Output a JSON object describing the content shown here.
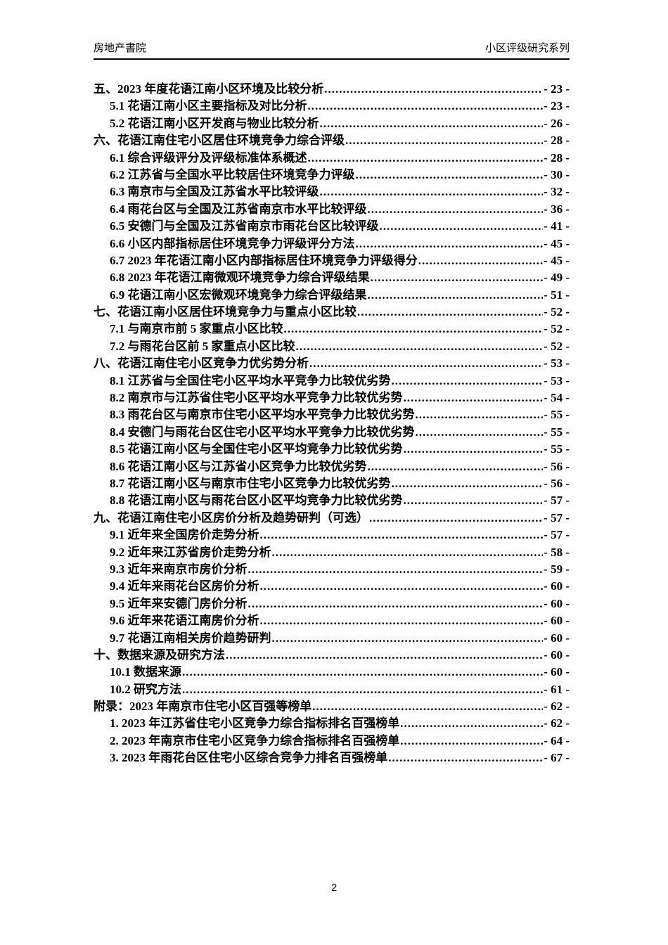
{
  "header": {
    "left": "房地产書院",
    "right": "小区评级研究系列"
  },
  "footer": {
    "page_number": "2"
  },
  "toc": {
    "entries": [
      {
        "level": 1,
        "label": "五、2023 年度花语江南小区环境及比较分析",
        "page": "- 23 -"
      },
      {
        "level": 2,
        "label": "5.1 花语江南小区主要指标及对比分析",
        "page": "- 23 -"
      },
      {
        "level": 2,
        "label": "5.2 花语江南小区开发商与物业比较分析",
        "page": "- 26 -"
      },
      {
        "level": 1,
        "label": "六、花语江南住宅小区居住环境竞争力综合评级",
        "page": "- 28 -"
      },
      {
        "level": 2,
        "label": "6.1 综合评级评分及评级标准体系概述",
        "page": "- 28 -"
      },
      {
        "level": 2,
        "label": "6.2 江苏省与全国水平比较居住环境竞争力评级",
        "page": "- 30 -"
      },
      {
        "level": 2,
        "label": "6.3 南京市与全国及江苏省水平比较评级",
        "page": "- 32 -"
      },
      {
        "level": 2,
        "label": "6.4 雨花台区与全国及江苏省南京市水平比较评级",
        "page": "- 36 -"
      },
      {
        "level": 2,
        "label": "6.5 安德门与全国及江苏省南京市雨花台区比较评级",
        "page": "- 41 -"
      },
      {
        "level": 2,
        "label": "6.6 小区内部指标居住环境竞争力评级评分方法",
        "page": "- 45 -"
      },
      {
        "level": 2,
        "label": "6.7 2023 年花语江南小区内部指标居住环境竞争力评级得分",
        "page": "- 45 -"
      },
      {
        "level": 2,
        "label": "6.8 2023 年花语江南微观环境竞争力综合评级结果",
        "page": "- 49 -"
      },
      {
        "level": 2,
        "label": "6.9 花语江南小区宏微观环境竞争力综合评级结果",
        "page": "- 51 -"
      },
      {
        "level": 1,
        "label": "七、花语江南小区居住环境竞争力与重点小区比较",
        "page": "- 52 -"
      },
      {
        "level": 2,
        "label": "7.1 与南京市前 5 家重点小区比较",
        "page": "- 52 -"
      },
      {
        "level": 2,
        "label": "7.2 与雨花台区前 5 家重点小区比较",
        "page": "- 52 -"
      },
      {
        "level": 1,
        "label": "八、花语江南住宅小区竞争力优劣势分析",
        "page": "- 53 -"
      },
      {
        "level": 2,
        "label": "8.1 江苏省与全国住宅小区平均水平竞争力比较优劣势",
        "page": "- 53 -"
      },
      {
        "level": 2,
        "label": "8.2 南京市与江苏省住宅小区平均水平竞争力比较优劣势",
        "page": "- 54 -"
      },
      {
        "level": 2,
        "label": "8.3 雨花台区与南京市住宅小区平均水平竞争力比较优劣势",
        "page": "- 55 -"
      },
      {
        "level": 2,
        "label": "8.4 安德门与雨花台区住宅小区平均水平竞争力比较优劣势",
        "page": "- 55 -"
      },
      {
        "level": 2,
        "label": "8.5 花语江南小区与全国住宅小区平均竞争力比较优劣势",
        "page": "- 55 -"
      },
      {
        "level": 2,
        "label": "8.6 花语江南小区与江苏省小区竞争力比较优劣势",
        "page": "- 56 -"
      },
      {
        "level": 2,
        "label": "8.7 花语江南小区与南京市住宅小区竞争力比较优劣势",
        "page": "- 56 -"
      },
      {
        "level": 2,
        "label": "8.8 花语江南小区与雨花台区小区平均竞争力比较优劣势",
        "page": "- 57 -"
      },
      {
        "level": 1,
        "label": "九、花语江南住宅小区房价分析及趋势研判（可选）",
        "page": "- 57 -"
      },
      {
        "level": 2,
        "label": "9.1 近年来全国房价走势分析",
        "page": "- 57 -"
      },
      {
        "level": 2,
        "label": "9.2 近年来江苏省房价走势分析",
        "page": "- 58 -"
      },
      {
        "level": 2,
        "label": "9.3 近年来南京市房价分析",
        "page": "- 59 -"
      },
      {
        "level": 2,
        "label": "9.4 近年来雨花台区房价分析",
        "page": "- 60 -"
      },
      {
        "level": 2,
        "label": "9.5 近年来安德门房价分析",
        "page": "- 60 -"
      },
      {
        "level": 2,
        "label": "9.6 近年来花语江南房价分析",
        "page": "- 60 -"
      },
      {
        "level": 2,
        "label": "9.7 花语江南相关房价趋势研判",
        "page": "- 60 -"
      },
      {
        "level": 1,
        "label": "十、数据来源及研究方法",
        "page": "- 60 -"
      },
      {
        "level": 2,
        "label": "10.1 数据来源",
        "page": "- 60 -"
      },
      {
        "level": 2,
        "label": "10.2 研究方法",
        "page": "- 61 -"
      },
      {
        "level": 1,
        "label": "附录：2023 年南京市住宅小区百强等榜单",
        "page": "- 62 -"
      },
      {
        "level": 2,
        "label": "1.  2023 年江苏省住宅小区竞争力综合指标排名百强榜单",
        "page": "- 62 -"
      },
      {
        "level": 2,
        "label": "2.  2023 年南京市住宅小区竞争力综合指标排名百强榜单",
        "page": "- 64 -"
      },
      {
        "level": 2,
        "label": "3.  2023 年雨花台区住宅小区综合竞争力排名百强榜单",
        "page": "- 67 -"
      }
    ]
  }
}
